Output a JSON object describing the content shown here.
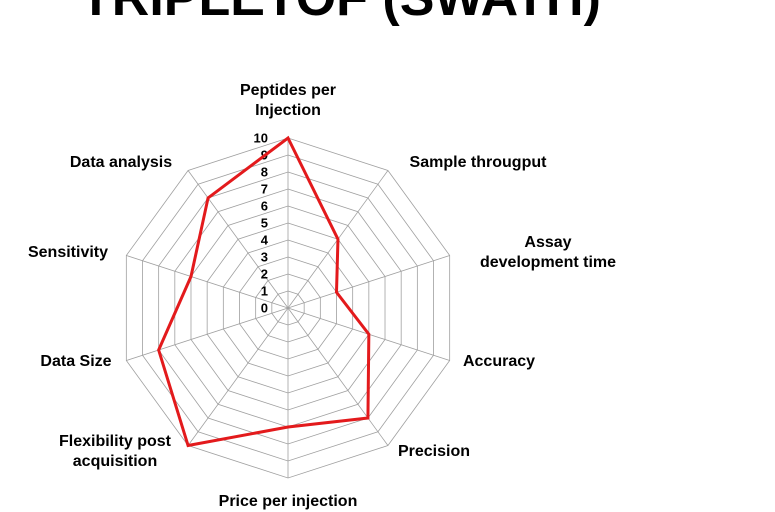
{
  "chart_data": {
    "type": "radar",
    "title": "TRIPLETOF (SWATH)",
    "categories": [
      "Peptides per\nInjection",
      "Sample througput",
      "Assay\ndevelopment time",
      "Accuracy",
      "Precision",
      "Price per injection",
      "Flexibility post\nacquisition",
      "Data Size",
      "Sensitivity",
      "Data analysis"
    ],
    "values": [
      10,
      5,
      3,
      5,
      8,
      7,
      10,
      8,
      6,
      8
    ],
    "color": "#e31a1c",
    "rlim": [
      0,
      10
    ],
    "rticks": [
      0,
      1,
      2,
      3,
      4,
      5,
      6,
      7,
      8,
      9,
      10
    ],
    "grid": true
  }
}
